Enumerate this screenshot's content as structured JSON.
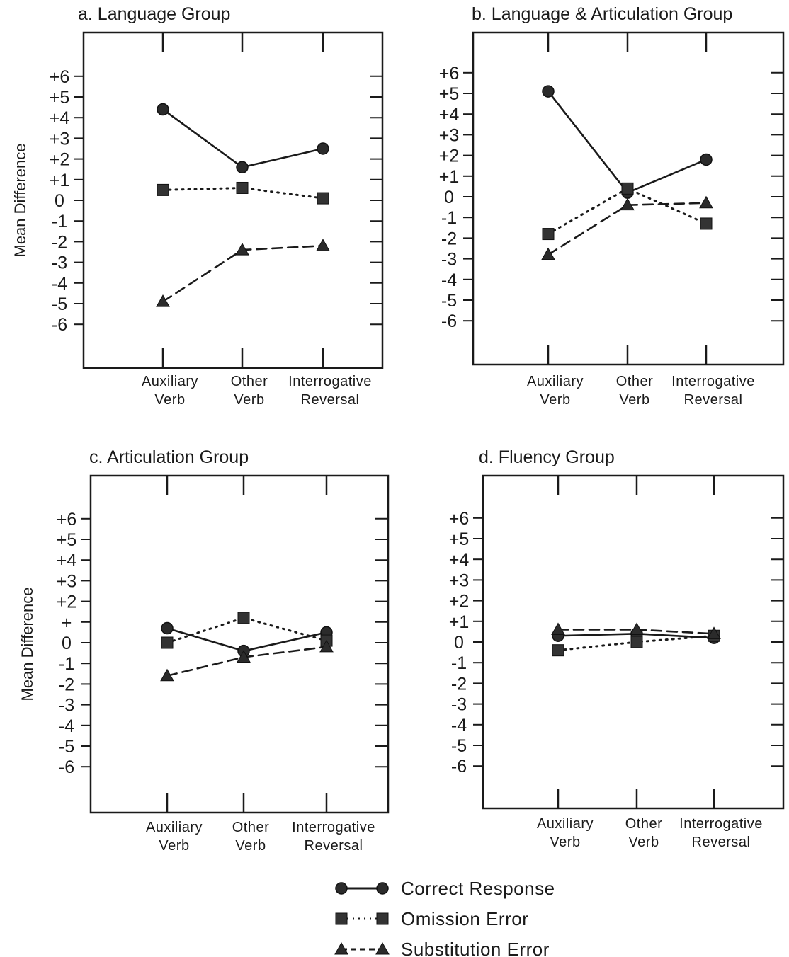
{
  "legend": {
    "items": [
      {
        "label": "Correct Response",
        "marker": "circle",
        "dash": "solid"
      },
      {
        "label": "Omission Error",
        "marker": "square",
        "dash": "dotted"
      },
      {
        "label": "Substitution Error",
        "marker": "triangle",
        "dash": "dashed"
      }
    ]
  },
  "chart_data": [
    {
      "type": "line",
      "title": "a. Language Group",
      "ylabel": "Mean Difference",
      "xlabel": "",
      "categories": [
        [
          "Auxiliary",
          "Verb"
        ],
        [
          "Other",
          "Verb"
        ],
        [
          "Interrogative",
          "Reversal"
        ]
      ],
      "ytick_labels": [
        "+6",
        "+5",
        "+4",
        "+3",
        "+2",
        "+1",
        "0",
        "-1",
        "-2",
        "-3",
        "-4",
        "-5",
        "-6"
      ],
      "ylim": [
        -8,
        8
      ],
      "grid": false,
      "series": [
        {
          "name": "Correct Response",
          "values": [
            4.4,
            1.6,
            2.5
          ]
        },
        {
          "name": "Omission Error",
          "values": [
            0.5,
            0.6,
            0.1
          ]
        },
        {
          "name": "Substitution Error",
          "values": [
            -4.9,
            -2.4,
            -2.2
          ]
        }
      ]
    },
    {
      "type": "line",
      "title": "b. Language & Articulation Group",
      "ylabel": "",
      "xlabel": "",
      "categories": [
        [
          "Auxiliary",
          "Verb"
        ],
        [
          "Other",
          "Verb"
        ],
        [
          "Interrogative",
          "Reversal"
        ]
      ],
      "ytick_labels": [
        "+6",
        "+5",
        "+4",
        "+3",
        "+2",
        "+1",
        "0",
        "-1",
        "-2",
        "-3",
        "-4",
        "-5",
        "-6"
      ],
      "ylim": [
        -8,
        8
      ],
      "grid": false,
      "series": [
        {
          "name": "Correct Response",
          "values": [
            5.1,
            0.2,
            1.8
          ]
        },
        {
          "name": "Omission Error",
          "values": [
            -1.8,
            0.4,
            -1.3
          ]
        },
        {
          "name": "Substitution Error",
          "values": [
            -2.8,
            -0.4,
            -0.3
          ]
        }
      ]
    },
    {
      "type": "line",
      "title": "c. Articulation Group",
      "ylabel": "Mean Difference",
      "xlabel": "",
      "categories": [
        [
          "Auxiliary",
          "Verb"
        ],
        [
          "Other",
          "Verb"
        ],
        [
          "Interrogative",
          "Reversal"
        ]
      ],
      "ytick_labels": [
        "+6",
        "+5",
        "+4",
        "+3",
        "+2",
        "+",
        "0",
        "-1",
        "-2",
        "-3",
        "-4",
        "-5",
        "-6"
      ],
      "ylim": [
        -8,
        8
      ],
      "grid": false,
      "series": [
        {
          "name": "Correct Response",
          "values": [
            0.7,
            -0.4,
            0.5
          ]
        },
        {
          "name": "Omission Error",
          "values": [
            0.0,
            1.2,
            0.1
          ]
        },
        {
          "name": "Substitution Error",
          "values": [
            -1.6,
            -0.7,
            -0.2
          ]
        }
      ]
    },
    {
      "type": "line",
      "title": "d. Fluency Group",
      "ylabel": "",
      "xlabel": "",
      "categories": [
        [
          "Auxiliary",
          "Verb"
        ],
        [
          "Other",
          "Verb"
        ],
        [
          "Interrogative",
          "Reversal"
        ]
      ],
      "ytick_labels": [
        "+6",
        "+5",
        "+4",
        "+3",
        "+2",
        "+1",
        "0",
        "-1",
        "-2",
        "-3",
        "-4",
        "-5",
        "-6"
      ],
      "ylim": [
        -8,
        8
      ],
      "grid": false,
      "series": [
        {
          "name": "Correct Response",
          "values": [
            0.3,
            0.4,
            0.2
          ]
        },
        {
          "name": "Omission Error",
          "values": [
            -0.4,
            0.0,
            0.3
          ]
        },
        {
          "name": "Substitution Error",
          "values": [
            0.6,
            0.6,
            0.4
          ]
        }
      ]
    }
  ]
}
